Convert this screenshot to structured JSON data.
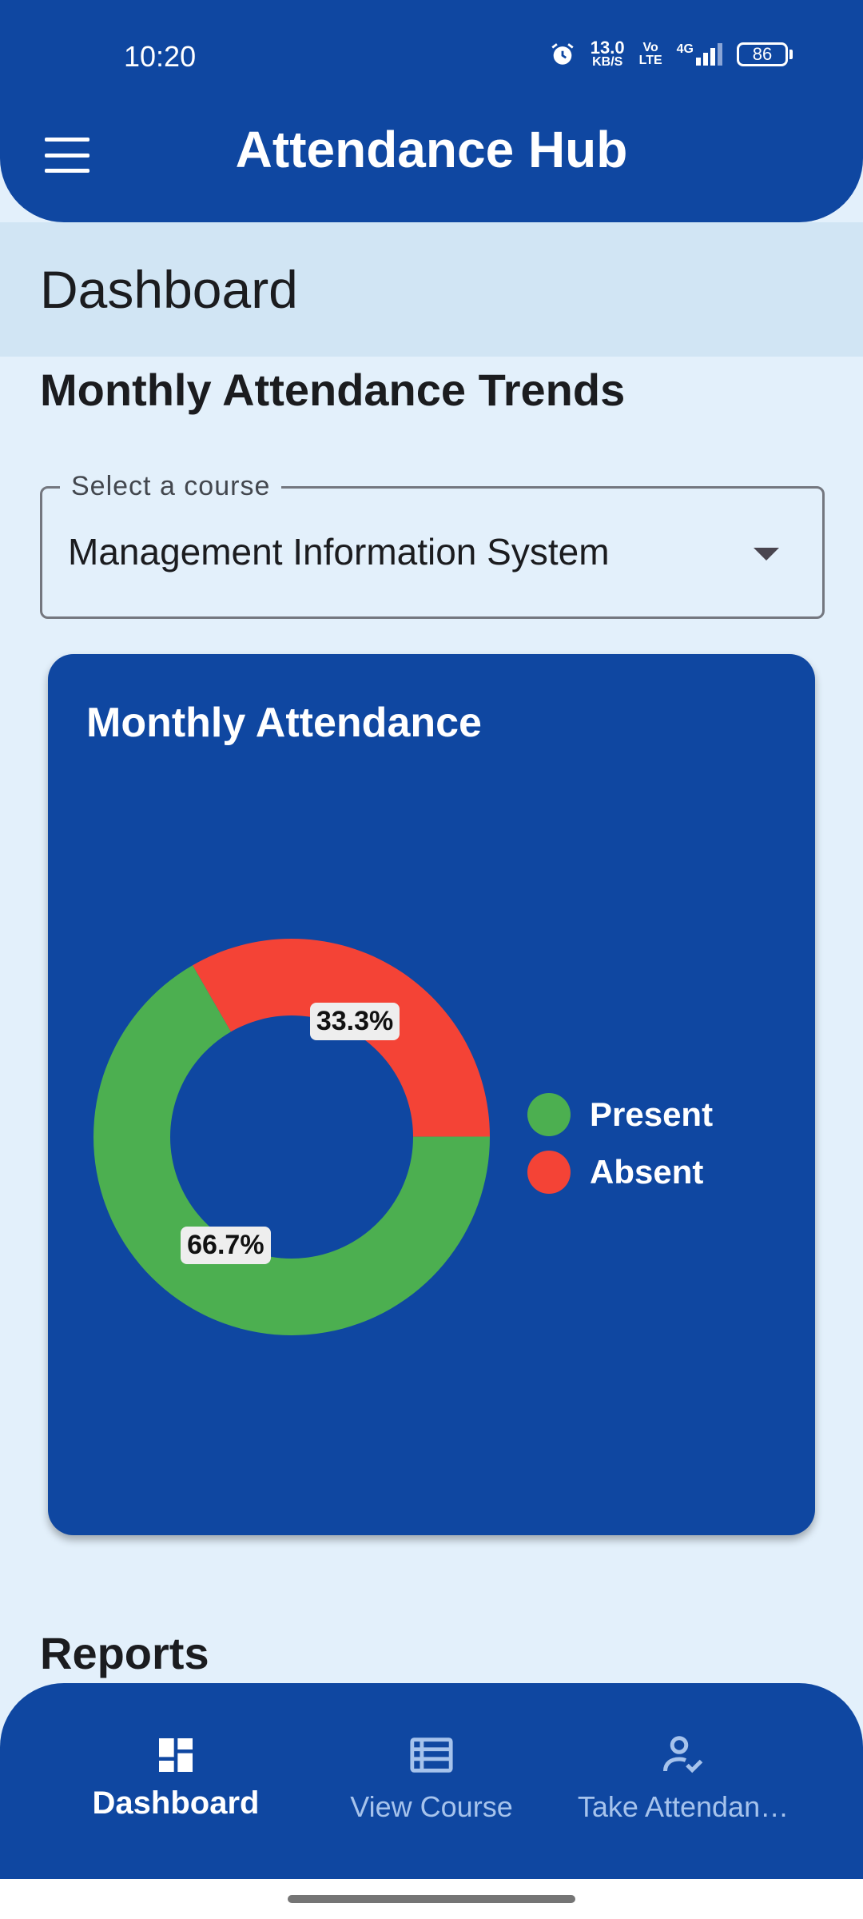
{
  "status_bar": {
    "time": "10:20",
    "net_speed_value": "13.0",
    "net_speed_unit": "KB/S",
    "volte_top": "Vo",
    "volte_bottom": "LTE",
    "network": "4G",
    "battery": "86"
  },
  "header": {
    "title": "Attendance Hub"
  },
  "page": {
    "title": "Dashboard",
    "section_title": "Monthly Attendance Trends",
    "reports_title": "Reports"
  },
  "course_select": {
    "label": "Select a course",
    "value": "Management Information System"
  },
  "card": {
    "title": "Monthly Attendance"
  },
  "chart_data": {
    "type": "pie",
    "variant": "donut",
    "title": "Monthly Attendance",
    "categories": [
      "Present",
      "Absent"
    ],
    "values": [
      66.7,
      33.3
    ],
    "labels": [
      "66.7%",
      "33.3%"
    ],
    "colors": [
      "#4caf50",
      "#f44336"
    ],
    "legend_position": "right"
  },
  "bottom_nav": {
    "items": [
      {
        "label": "Dashboard",
        "icon": "dashboard-icon",
        "active": true
      },
      {
        "label": "View Course",
        "icon": "list-icon",
        "active": false
      },
      {
        "label": "Take Attendan…",
        "icon": "person-check-icon",
        "active": false
      }
    ]
  },
  "colors": {
    "primary": "#0f47a1",
    "background": "#e3f0fb",
    "present": "#4caf50",
    "absent": "#f44336"
  }
}
